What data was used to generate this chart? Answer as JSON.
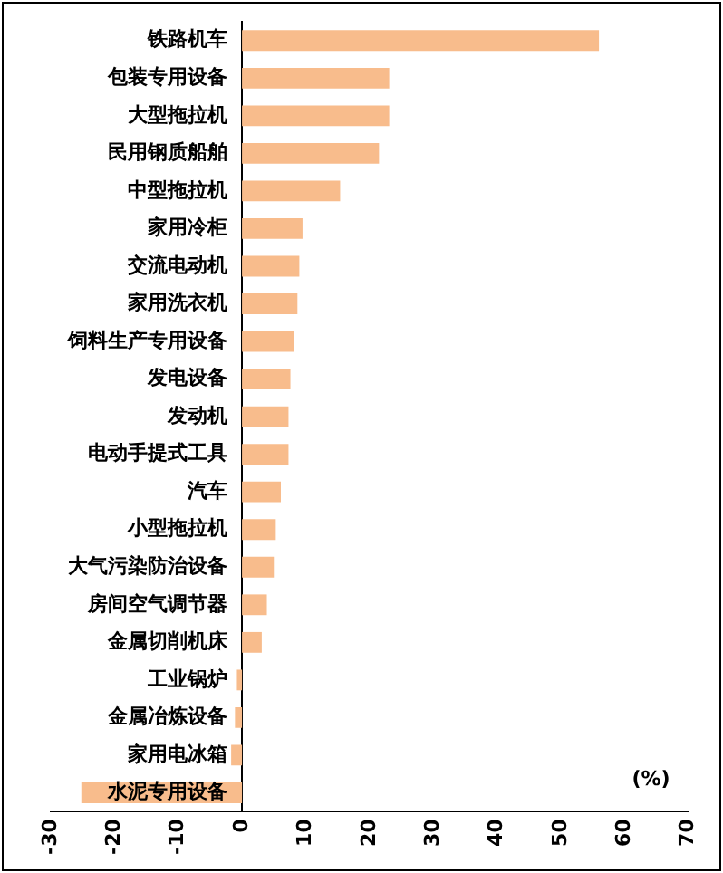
{
  "chart_data": {
    "type": "bar",
    "orientation": "horizontal",
    "categories": [
      "铁路机车",
      "包装专用设备",
      "大型拖拉机",
      "民用钢质船舶",
      "中型拖拉机",
      "家用冷柜",
      "交流电动机",
      "家用洗衣机",
      "饲料生产专用设备",
      "发电设备",
      "发动机",
      "电动手提式工具",
      "汽车",
      "小型拖拉机",
      "大气污染防治设备",
      "房间空气调节器",
      "金属切削机床",
      "工业锅炉",
      "金属冶炼设备",
      "家用电冰箱",
      "水泥专用设备"
    ],
    "values": [
      56,
      23.1,
      23.1,
      21.5,
      15.4,
      9.5,
      9.0,
      8.7,
      8.1,
      7.6,
      7.3,
      7.3,
      6.1,
      5.3,
      5.0,
      3.9,
      3.1,
      -0.8,
      -1.1,
      -1.7,
      -25.2
    ],
    "color": "#f8bc8c",
    "xlim": [
      -30,
      70
    ],
    "xticks": [
      -30,
      -20,
      -10,
      0,
      10,
      20,
      30,
      40,
      50,
      60,
      70
    ],
    "annotations": [
      "(%)"
    ],
    "grid": false,
    "legend": false
  }
}
